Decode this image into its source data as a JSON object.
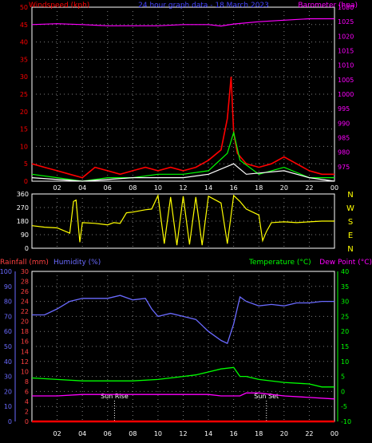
{
  "title": "24 hour graph data - 18 March 2023",
  "colors": {
    "background": "#000000",
    "frame": "#ffffff",
    "grid": "#808080",
    "windspeed": "#ff0000",
    "gust": "#00ff00",
    "avgspeed": "#ffffff",
    "barometer": "#ff00ff",
    "direction": "#ffff00",
    "rainfall": "#ff0000",
    "humidity": "#6a6aff",
    "temperature": "#00ff00",
    "dewpoint": "#ff00ff",
    "rain_axis": "#ff4040",
    "temp_axis": "#00ff00"
  },
  "chart_data": [
    {
      "type": "line",
      "panel": "wind-barometer",
      "xlabel": "",
      "x_tick_labels": [
        "02",
        "04",
        "06",
        "08",
        "10",
        "12",
        "14",
        "16",
        "18",
        "20",
        "22",
        "00"
      ],
      "ylabel_left": "Windspeed (kph)",
      "ylabel_right": "Barometer (hpa)",
      "ylim_left": [
        0,
        50
      ],
      "yticks_left": [
        "0",
        "5",
        "10",
        "15",
        "20",
        "25",
        "30",
        "35",
        "40",
        "45",
        "50"
      ],
      "ylim_right": [
        970,
        1030
      ],
      "yticks_right": [
        "975",
        "980",
        "985",
        "990",
        "995",
        "1000",
        "1005",
        "1010",
        "1015",
        "1020",
        "1025",
        "1030"
      ],
      "grid": true,
      "series": [
        {
          "name": "Windspeed",
          "axis": "left",
          "points": [
            [
              0,
              5
            ],
            [
              1,
              4
            ],
            [
              2,
              3
            ],
            [
              3,
              2
            ],
            [
              4,
              1
            ],
            [
              5,
              4
            ],
            [
              6,
              3
            ],
            [
              7,
              2
            ],
            [
              8,
              3
            ],
            [
              9,
              4
            ],
            [
              10,
              3
            ],
            [
              11,
              4
            ],
            [
              12,
              3
            ],
            [
              13,
              4
            ],
            [
              14,
              6
            ],
            [
              15,
              9
            ],
            [
              15.5,
              18
            ],
            [
              15.8,
              30
            ],
            [
              16,
              14
            ],
            [
              16.3,
              8
            ],
            [
              17,
              5
            ],
            [
              18,
              4
            ],
            [
              19,
              5
            ],
            [
              20,
              7
            ],
            [
              21,
              5
            ],
            [
              22,
              3
            ],
            [
              23,
              2
            ],
            [
              24,
              2
            ]
          ]
        },
        {
          "name": "Gust",
          "axis": "left",
          "points": [
            [
              0,
              2
            ],
            [
              2,
              1
            ],
            [
              4,
              0
            ],
            [
              6,
              1
            ],
            [
              8,
              1
            ],
            [
              10,
              2
            ],
            [
              12,
              2
            ],
            [
              14,
              3
            ],
            [
              15.5,
              8
            ],
            [
              16,
              14
            ],
            [
              16.5,
              6
            ],
            [
              18,
              2
            ],
            [
              20,
              4
            ],
            [
              22,
              1
            ],
            [
              24,
              1
            ]
          ]
        },
        {
          "name": "Average",
          "axis": "left",
          "points": [
            [
              0,
              1
            ],
            [
              4,
              0
            ],
            [
              8,
              1
            ],
            [
              12,
              1
            ],
            [
              14,
              2
            ],
            [
              16,
              5
            ],
            [
              17,
              2
            ],
            [
              20,
              3
            ],
            [
              22,
              1
            ],
            [
              24,
              0
            ]
          ]
        },
        {
          "name": "Barometer",
          "axis": "right",
          "points": [
            [
              0,
              1024
            ],
            [
              2,
              1024.3
            ],
            [
              4,
              1024
            ],
            [
              6,
              1023.6
            ],
            [
              8,
              1023.6
            ],
            [
              10,
              1023.6
            ],
            [
              12,
              1024
            ],
            [
              14,
              1024
            ],
            [
              15,
              1023.5
            ],
            [
              16,
              1024.2
            ],
            [
              18,
              1025
            ],
            [
              20,
              1025.5
            ],
            [
              22,
              1026
            ],
            [
              24,
              1026
            ]
          ]
        }
      ]
    },
    {
      "type": "line",
      "panel": "wind-direction",
      "ylim": [
        0,
        360
      ],
      "yticks_left": [
        "0",
        "90",
        "180",
        "270",
        "360"
      ],
      "labels_right": [
        "N",
        "W",
        "S",
        "E",
        "N"
      ],
      "series": [
        {
          "name": "Direction",
          "points": [
            [
              0,
              150
            ],
            [
              1,
              140
            ],
            [
              2,
              135
            ],
            [
              3,
              100
            ],
            [
              3.3,
              310
            ],
            [
              3.5,
              320
            ],
            [
              3.8,
              40
            ],
            [
              4,
              170
            ],
            [
              5,
              165
            ],
            [
              6,
              155
            ],
            [
              6.5,
              170
            ],
            [
              7,
              165
            ],
            [
              7.5,
              235
            ],
            [
              8,
              240
            ],
            [
              9,
              255
            ],
            [
              9.5,
              260
            ],
            [
              10,
              350
            ],
            [
              10.5,
              30
            ],
            [
              11,
              340
            ],
            [
              11.5,
              20
            ],
            [
              12,
              345
            ],
            [
              12.5,
              25
            ],
            [
              13,
              340
            ],
            [
              13.5,
              20
            ],
            [
              14,
              345
            ],
            [
              15,
              300
            ],
            [
              15.5,
              30
            ],
            [
              16,
              350
            ],
            [
              16.5,
              310
            ],
            [
              17,
              260
            ],
            [
              18,
              220
            ],
            [
              18.3,
              50
            ],
            [
              18.6,
              110
            ],
            [
              19,
              170
            ],
            [
              20,
              175
            ],
            [
              21,
              170
            ],
            [
              22,
              175
            ],
            [
              23,
              180
            ],
            [
              24,
              180
            ]
          ]
        }
      ]
    },
    {
      "type": "line",
      "panel": "temperature-humidity-rain",
      "x_tick_labels": [
        "02",
        "04",
        "06",
        "08",
        "10",
        "12",
        "14",
        "16",
        "18",
        "20",
        "22",
        "00"
      ],
      "ylabel_left_1": "Rainfall (mm)",
      "ylabel_left_2": "Humidity (%)",
      "ylabel_right_1": "Temperature (°C)",
      "ylabel_right_2": "Dew Point (°C)",
      "ylim_humidity": [
        0,
        100
      ],
      "yticks_humidity": [
        "0",
        "10",
        "20",
        "30",
        "40",
        "50",
        "60",
        "70",
        "80",
        "90",
        "100"
      ],
      "ylim_rain": [
        0,
        30
      ],
      "yticks_rain": [
        "0",
        "2",
        "4",
        "6",
        "8",
        "10",
        "12",
        "14",
        "16",
        "18",
        "20",
        "22",
        "24",
        "26",
        "28",
        "30"
      ],
      "ylim_temp": [
        -10,
        40
      ],
      "yticks_temp": [
        "-10",
        "-5",
        "0",
        "5",
        "10",
        "15",
        "20",
        "25",
        "30",
        "35",
        "40"
      ],
      "annotations": [
        "Sun Rise",
        "Sun Set"
      ],
      "grid": true,
      "series": [
        {
          "name": "Humidity",
          "axis": "humidity",
          "points": [
            [
              0,
              71
            ],
            [
              1,
              71
            ],
            [
              2,
              75
            ],
            [
              3,
              80
            ],
            [
              4,
              82
            ],
            [
              5,
              82
            ],
            [
              6,
              82
            ],
            [
              7,
              84
            ],
            [
              8,
              81
            ],
            [
              9,
              82
            ],
            [
              9.5,
              75
            ],
            [
              10,
              70
            ],
            [
              11,
              72
            ],
            [
              12,
              70
            ],
            [
              13,
              68
            ],
            [
              14,
              60
            ],
            [
              15,
              54
            ],
            [
              15.5,
              52
            ],
            [
              16,
              65
            ],
            [
              16.5,
              83
            ],
            [
              17,
              80
            ],
            [
              18,
              77
            ],
            [
              19,
              78
            ],
            [
              20,
              77
            ],
            [
              21,
              79
            ],
            [
              22,
              79
            ],
            [
              23,
              80
            ],
            [
              24,
              80
            ]
          ]
        },
        {
          "name": "Temperature",
          "axis": "temp",
          "points": [
            [
              0,
              4.5
            ],
            [
              2,
              4
            ],
            [
              4,
              3.5
            ],
            [
              6,
              3.5
            ],
            [
              8,
              3.5
            ],
            [
              10,
              4
            ],
            [
              12,
              5
            ],
            [
              13,
              5.5
            ],
            [
              14,
              6.5
            ],
            [
              15,
              7.5
            ],
            [
              16,
              8
            ],
            [
              16.5,
              5
            ],
            [
              17,
              5
            ],
            [
              18,
              4
            ],
            [
              20,
              3
            ],
            [
              22,
              2.5
            ],
            [
              23,
              1.5
            ],
            [
              24,
              1.5
            ]
          ]
        },
        {
          "name": "Dew Point",
          "axis": "temp",
          "points": [
            [
              0,
              -1.5
            ],
            [
              2,
              -1.5
            ],
            [
              4,
              -1
            ],
            [
              6,
              -1
            ],
            [
              8,
              -1
            ],
            [
              10,
              -1
            ],
            [
              12,
              -1
            ],
            [
              13,
              -1
            ],
            [
              14,
              -1
            ],
            [
              15,
              -1.5
            ],
            [
              16,
              -1.5
            ],
            [
              16.5,
              -1.5
            ],
            [
              17,
              -0.5
            ],
            [
              18,
              -0.5
            ],
            [
              19,
              -1
            ],
            [
              20,
              -1.5
            ],
            [
              22,
              -2
            ],
            [
              24,
              -2.5
            ]
          ]
        },
        {
          "name": "Rainfall",
          "axis": "rain",
          "points": [
            [
              0,
              0
            ],
            [
              24,
              0
            ]
          ]
        }
      ]
    }
  ]
}
